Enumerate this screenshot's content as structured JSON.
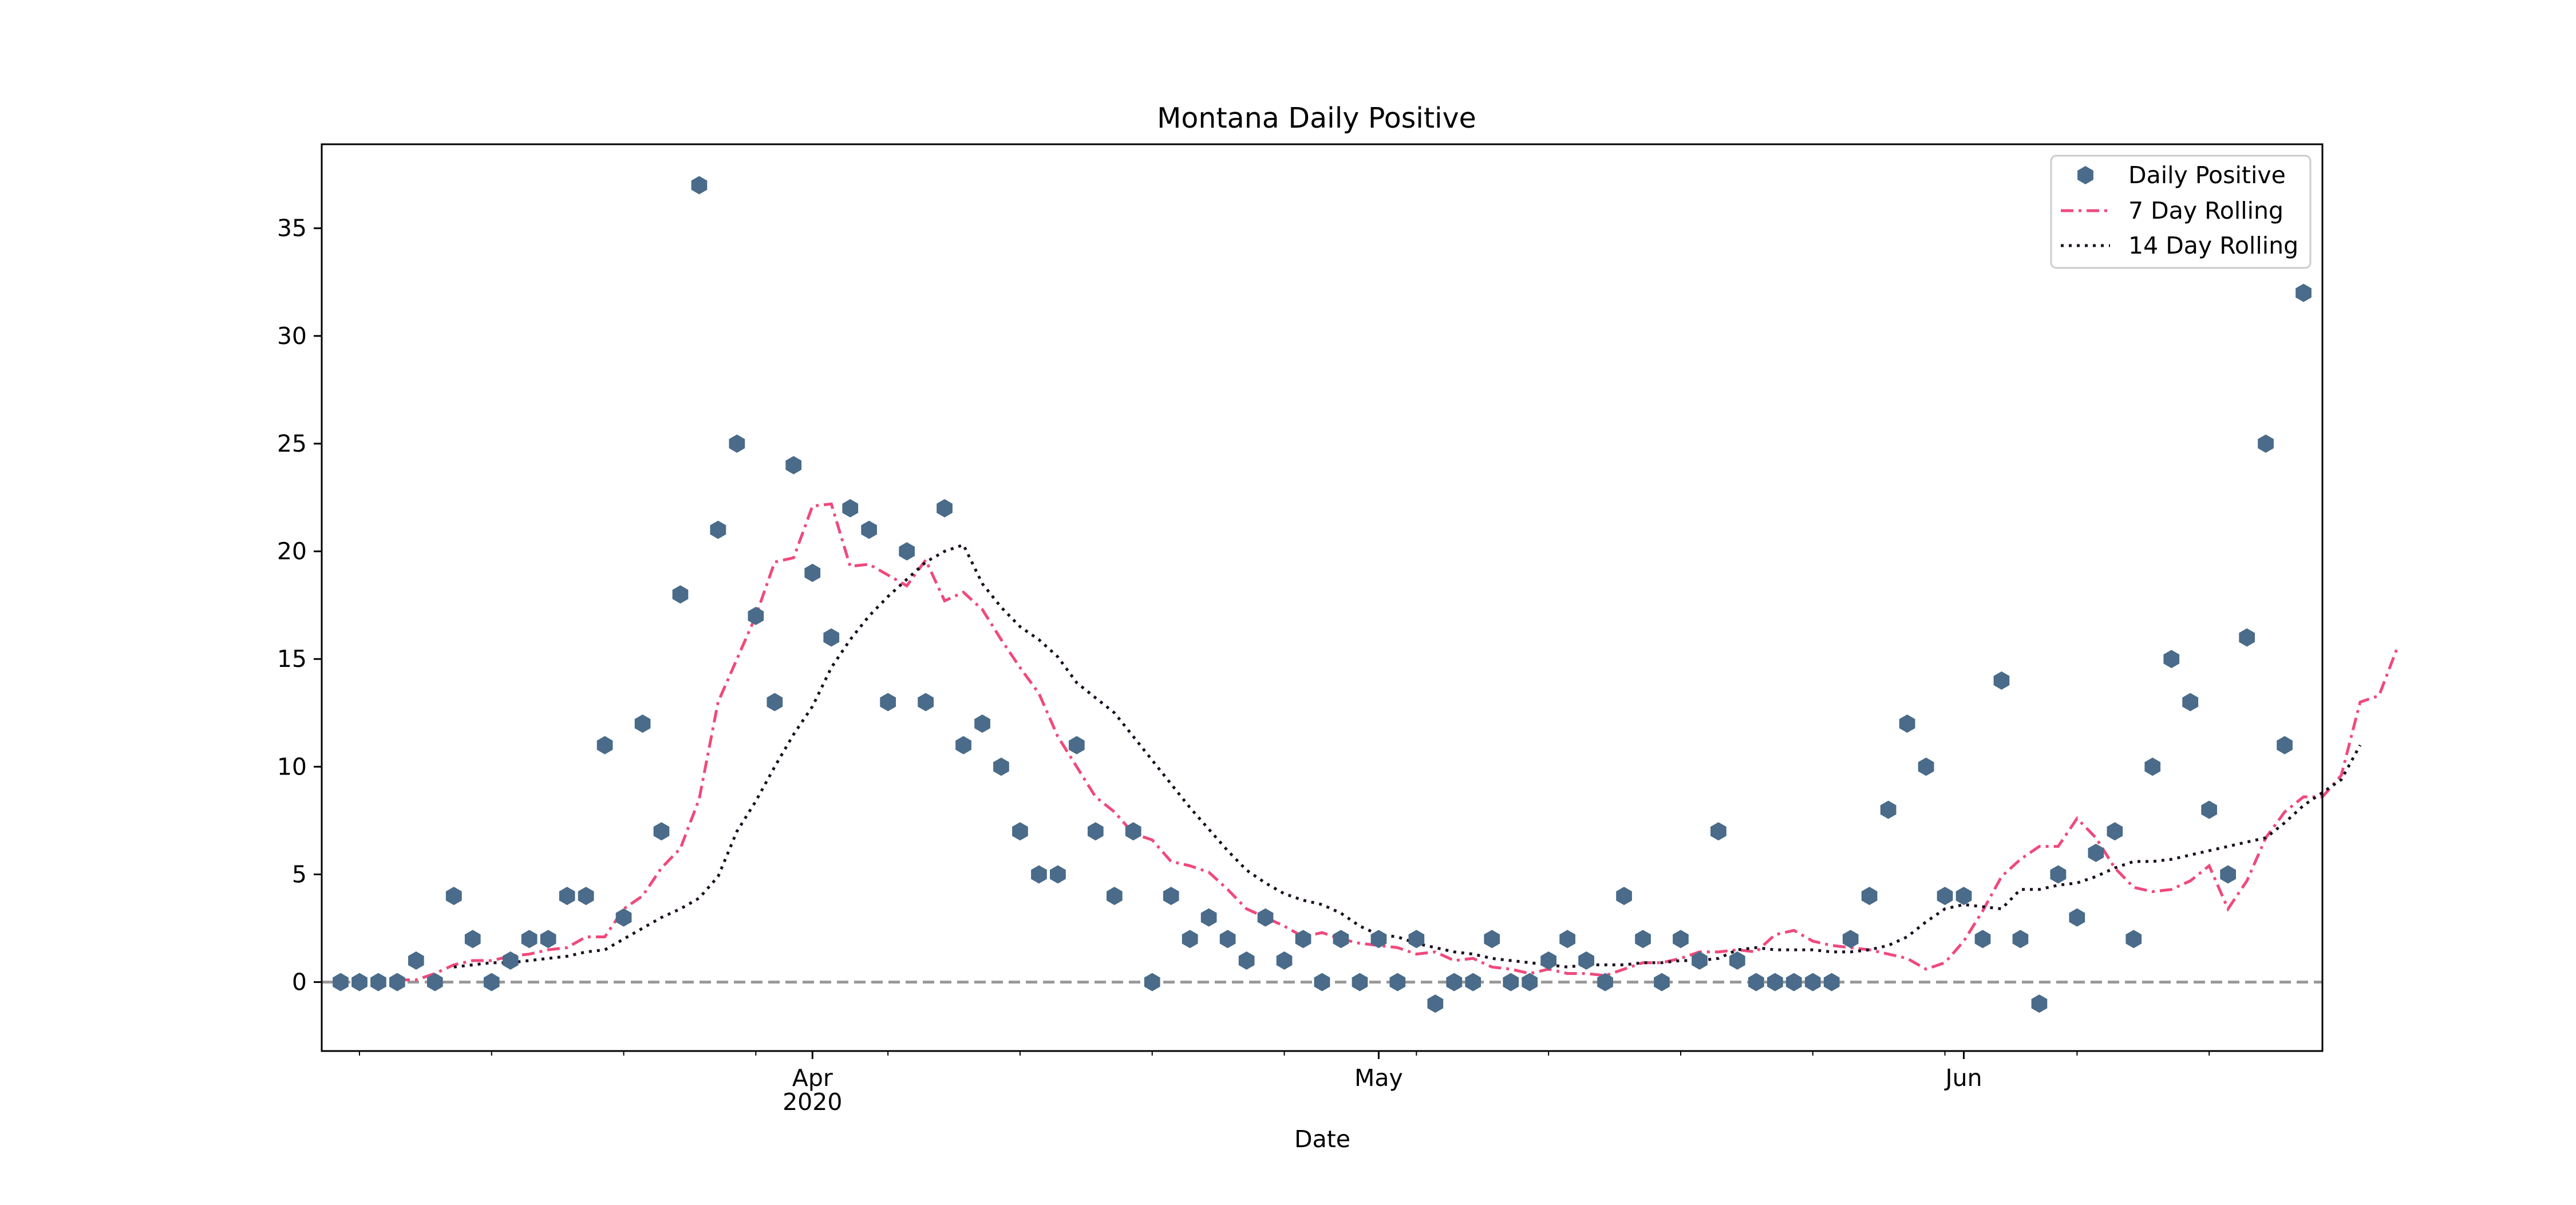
{
  "chart_data": {
    "type": "line",
    "title": "Montana Daily Positive",
    "xlabel": "Date",
    "ylabel": "",
    "x_start": "2020-03-06",
    "x_end": "2020-06-20",
    "xlim": [
      "2020-03-06",
      "2020-06-20"
    ],
    "ylim": [
      -3.2,
      38.9
    ],
    "y_ticks": [
      0,
      5,
      10,
      15,
      20,
      25,
      30,
      35
    ],
    "x_major_ticks": [
      {
        "date": "2020-04-01",
        "label": "Apr",
        "sublabel": "2020"
      },
      {
        "date": "2020-05-01",
        "label": "May",
        "sublabel": ""
      },
      {
        "date": "2020-06-01",
        "label": "Jun",
        "sublabel": ""
      }
    ],
    "x_minor_ticks": [
      "2020-03-08",
      "2020-03-15",
      "2020-03-22",
      "2020-03-29",
      "2020-04-05",
      "2020-04-12",
      "2020-04-19",
      "2020-04-26",
      "2020-05-03",
      "2020-05-10",
      "2020-05-17",
      "2020-05-24",
      "2020-05-31",
      "2020-06-07",
      "2020-06-14"
    ],
    "zero_line": {
      "y": 0,
      "color": "#999999",
      "style": "dashed"
    },
    "grid": false,
    "legend_position": "top-right",
    "series": [
      {
        "name": "Daily Positive",
        "kind": "scatter",
        "marker": "hexagon",
        "color": "#4a6b8a",
        "start_date": "2020-03-07",
        "values": [
          0,
          0,
          0,
          0,
          1,
          0,
          4,
          2,
          0,
          1,
          2,
          2,
          4,
          4,
          11,
          3,
          12,
          7,
          18,
          37,
          21,
          25,
          17,
          13,
          24,
          19,
          16,
          22,
          21,
          13,
          20,
          13,
          22,
          11,
          12,
          10,
          7,
          5,
          5,
          11,
          7,
          4,
          7,
          0,
          4,
          2,
          3,
          2,
          1,
          3,
          1,
          2,
          0,
          2,
          0,
          2,
          0,
          2,
          -1,
          0,
          0,
          2,
          0,
          0,
          1,
          2,
          1,
          0,
          4,
          2,
          0,
          2,
          1,
          7,
          1,
          0,
          0,
          0,
          0,
          0,
          2,
          4,
          8,
          12,
          10,
          4,
          4,
          2,
          14,
          2,
          -1,
          5,
          3,
          6,
          7,
          2,
          10,
          15,
          13,
          8,
          5,
          16,
          25,
          11,
          32
        ]
      },
      {
        "name": "7 Day Rolling",
        "kind": "line",
        "style": "dashdot",
        "color": "#f0497c",
        "start_date": "2020-03-10",
        "values": [
          0.1,
          0.1,
          0.4,
          0.8,
          1.0,
          1.0,
          1.2,
          1.3,
          1.5,
          1.6,
          2.1,
          2.1,
          3.4,
          4.0,
          5.3,
          6.2,
          8.5,
          13.0,
          15.0,
          17.0,
          19.5,
          19.7,
          22.1,
          22.2,
          19.3,
          19.4,
          18.9,
          18.4,
          19.6,
          17.7,
          18.1,
          17.3,
          15.9,
          14.6,
          13.4,
          11.4,
          10.0,
          8.6,
          7.9,
          6.9,
          6.6,
          5.6,
          5.4,
          5.1,
          4.3,
          3.4,
          3.0,
          2.6,
          2.1,
          2.3,
          2.0,
          1.8,
          1.7,
          1.6,
          1.3,
          1.4,
          1.0,
          1.1,
          0.7,
          0.6,
          0.4,
          0.6,
          0.4,
          0.4,
          0.3,
          0.6,
          0.9,
          0.9,
          1.1,
          1.4,
          1.4,
          1.5,
          1.4,
          2.2,
          2.4,
          1.9,
          1.7,
          1.6,
          1.5,
          1.3,
          1.1,
          0.6,
          0.9,
          1.9,
          3.3,
          4.9,
          5.7,
          6.3,
          6.3,
          7.6,
          6.7,
          5.3,
          4.4,
          4.2,
          4.3,
          4.7,
          5.4,
          3.4,
          4.7,
          6.7,
          7.9,
          8.6,
          8.6,
          9.6,
          13.0,
          13.3,
          15.6
        ]
      },
      {
        "name": "14 Day Rolling",
        "kind": "line",
        "style": "dotted",
        "color": "#1a0f1f",
        "start_date": "2020-03-13",
        "values": [
          0.7,
          0.8,
          0.9,
          0.9,
          1.0,
          1.1,
          1.2,
          1.4,
          1.5,
          2.0,
          2.5,
          3.0,
          3.4,
          3.9,
          4.9,
          7.0,
          8.4,
          10.0,
          11.5,
          12.8,
          14.6,
          15.9,
          17.0,
          17.9,
          18.7,
          19.5,
          20.0,
          20.3,
          18.5,
          17.4,
          16.5,
          15.9,
          15.1,
          13.9,
          13.2,
          12.5,
          11.4,
          10.3,
          9.2,
          8.1,
          7.1,
          6.1,
          5.2,
          4.6,
          4.1,
          3.8,
          3.6,
          3.2,
          2.6,
          2.2,
          2.1,
          1.8,
          1.6,
          1.4,
          1.3,
          1.1,
          1.0,
          0.9,
          0.8,
          0.7,
          0.8,
          0.8,
          0.8,
          0.9,
          0.9,
          1.0,
          1.0,
          1.1,
          1.5,
          1.6,
          1.5,
          1.5,
          1.5,
          1.4,
          1.4,
          1.5,
          1.7,
          2.1,
          2.8,
          3.4,
          3.6,
          3.5,
          3.4,
          4.3,
          4.3,
          4.5,
          4.6,
          4.9,
          5.3,
          5.6,
          5.6,
          5.7,
          5.9,
          6.1,
          6.3,
          6.5,
          6.7,
          7.4,
          8.2,
          8.8,
          9.4,
          11.0
        ]
      }
    ]
  }
}
